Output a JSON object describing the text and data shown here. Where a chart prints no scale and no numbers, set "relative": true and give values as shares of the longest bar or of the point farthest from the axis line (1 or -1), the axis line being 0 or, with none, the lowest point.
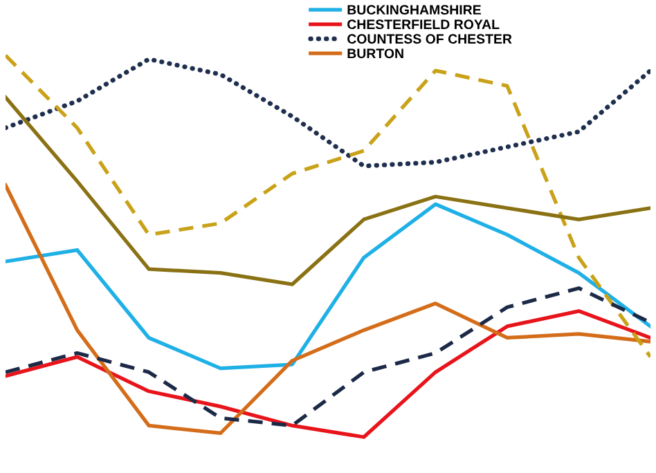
{
  "chart_data": {
    "type": "line",
    "relative": true,
    "legend": "top right",
    "categories": [
      null,
      null,
      null,
      null,
      null,
      null,
      null,
      null,
      null,
      null
    ],
    "series": [
      {
        "name": "BUCKINGHAMSHIRE",
        "color": "#1fb0e6",
        "line_style": "solid",
        "values": [
          0.46,
          0.49,
          0.26,
          0.18,
          0.19,
          0.47,
          0.61,
          0.53,
          0.43,
          0.29
        ]
      },
      {
        "name": "CHESTERFIELD ROYAL",
        "color": "#e8141b",
        "line_style": "solid",
        "values": [
          0.16,
          0.21,
          0.12,
          0.08,
          0.03,
          0,
          0.17,
          0.29,
          0.33,
          0.26
        ]
      },
      {
        "name": "COUNTESS OF CHESTER",
        "color": "#1f2f4f",
        "line_style": "dotted",
        "values": [
          0.81,
          0.88,
          0.99,
          0.95,
          0.84,
          0.71,
          0.72,
          0.76,
          0.8,
          0.96
        ]
      },
      {
        "name": "BURTON",
        "color": "#d46d1a",
        "line_style": "solid",
        "values": [
          0.66,
          0.28,
          0.03,
          0.01,
          0.2,
          0.28,
          0.35,
          0.26,
          0.27,
          0.25
        ]
      },
      {
        "color": "#c9a219",
        "line_style": "dashed",
        "values": [
          1,
          0.81,
          0.53,
          0.56,
          0.69,
          0.75,
          0.96,
          0.92,
          0.47,
          0.21
        ]
      },
      {
        "color": "#8a7214",
        "line_style": "solid",
        "values": [
          0.89,
          0.67,
          0.44,
          0.43,
          0.4,
          0.57,
          0.63,
          0.6,
          0.57,
          0.6
        ]
      },
      {
        "color": "#1c2a48",
        "line_style": "dashed",
        "values": [
          0.17,
          0.22,
          0.17,
          0.05,
          0.03,
          0.17,
          0.22,
          0.34,
          0.39,
          0.3
        ]
      }
    ]
  }
}
